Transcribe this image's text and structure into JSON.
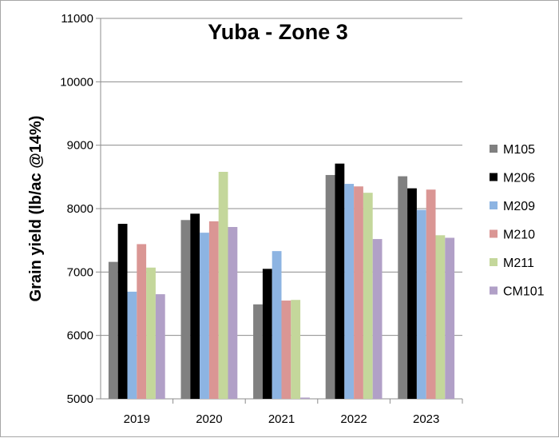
{
  "chart_data": {
    "type": "bar",
    "title": "Yuba - Zone 3",
    "xlabel": "",
    "ylabel": "Grain yield (lb/ac @14%)",
    "ylim": [
      5000,
      11000
    ],
    "yticks": [
      5000,
      6000,
      7000,
      8000,
      9000,
      10000,
      11000
    ],
    "grid": true,
    "legend_position": "right",
    "categories": [
      "2019",
      "2020",
      "2021",
      "2022",
      "2023"
    ],
    "series": [
      {
        "name": "M105",
        "color": "#808080",
        "values": [
          7160,
          7820,
          6490,
          8530,
          8510
        ]
      },
      {
        "name": "M206",
        "color": "#000000",
        "values": [
          7760,
          7920,
          7050,
          8710,
          8320
        ]
      },
      {
        "name": "M209",
        "color": "#8db4e2",
        "values": [
          6690,
          7620,
          7330,
          8390,
          7980
        ]
      },
      {
        "name": "M210",
        "color": "#da9694",
        "values": [
          7440,
          7800,
          6550,
          8350,
          8300
        ]
      },
      {
        "name": "M211",
        "color": "#c4d79b",
        "values": [
          7070,
          8580,
          6560,
          8250,
          7580
        ]
      },
      {
        "name": "CM101",
        "color": "#b1a0c7",
        "values": [
          6650,
          7710,
          5020,
          7520,
          7540
        ]
      }
    ]
  }
}
